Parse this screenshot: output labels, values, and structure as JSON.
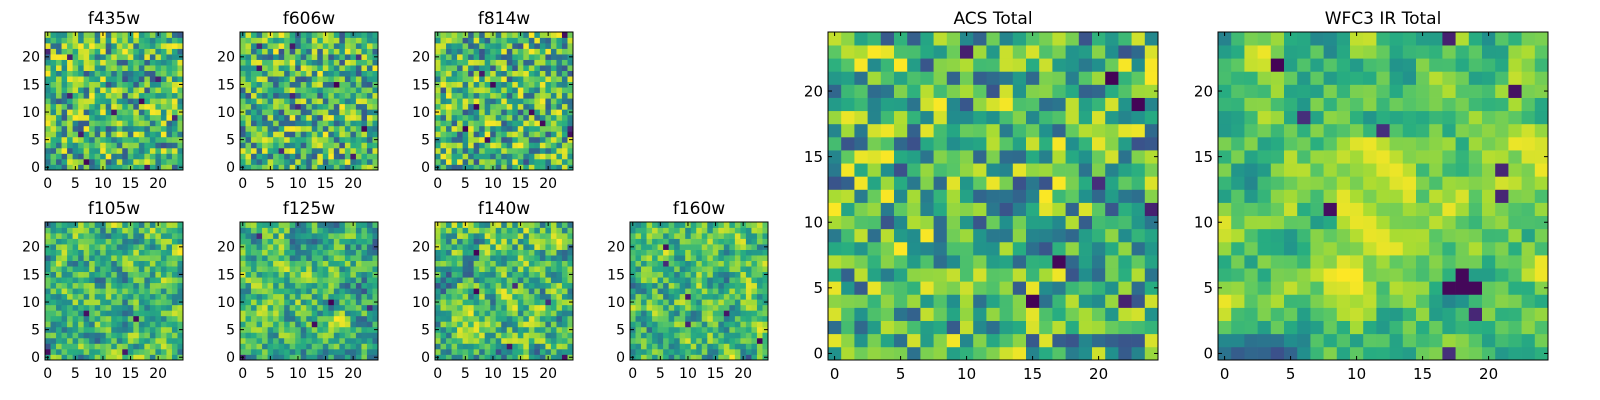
{
  "chart_data": [
    {
      "type": "heatmap",
      "title": "f435w",
      "xlim": [
        -0.5,
        24.5
      ],
      "ylim": [
        -0.5,
        24.5
      ],
      "xticks": [
        0,
        5,
        10,
        15,
        20
      ],
      "yticks": [
        0,
        5,
        10,
        15,
        20
      ],
      "grid": false,
      "colormap": "viridis",
      "data_note": "25x25 pixel cutout"
    },
    {
      "type": "heatmap",
      "title": "f606w",
      "xlim": [
        -0.5,
        24.5
      ],
      "ylim": [
        -0.5,
        24.5
      ],
      "xticks": [
        0,
        5,
        10,
        15,
        20
      ],
      "yticks": [
        0,
        5,
        10,
        15,
        20
      ],
      "grid": false,
      "colormap": "viridis",
      "data_note": "25x25 pixel cutout"
    },
    {
      "type": "heatmap",
      "title": "f814w",
      "xlim": [
        -0.5,
        24.5
      ],
      "ylim": [
        -0.5,
        24.5
      ],
      "xticks": [
        0,
        5,
        10,
        15,
        20
      ],
      "yticks": [
        0,
        5,
        10,
        15,
        20
      ],
      "grid": false,
      "colormap": "viridis",
      "data_note": "25x25 pixel cutout"
    },
    {
      "type": "heatmap",
      "title": "f105w",
      "xlim": [
        -0.5,
        24.5
      ],
      "ylim": [
        -0.5,
        24.5
      ],
      "xticks": [
        0,
        5,
        10,
        15,
        20
      ],
      "yticks": [
        0,
        5,
        10,
        15,
        20
      ],
      "grid": false,
      "colormap": "viridis",
      "data_note": "25x25 pixel cutout"
    },
    {
      "type": "heatmap",
      "title": "f125w",
      "xlim": [
        -0.5,
        24.5
      ],
      "ylim": [
        -0.5,
        24.5
      ],
      "xticks": [
        0,
        5,
        10,
        15,
        20
      ],
      "yticks": [
        0,
        5,
        10,
        15,
        20
      ],
      "grid": false,
      "colormap": "viridis",
      "data_note": "25x25 pixel cutout"
    },
    {
      "type": "heatmap",
      "title": "f140w",
      "xlim": [
        -0.5,
        24.5
      ],
      "ylim": [
        -0.5,
        24.5
      ],
      "xticks": [
        0,
        5,
        10,
        15,
        20
      ],
      "yticks": [
        0,
        5,
        10,
        15,
        20
      ],
      "grid": false,
      "colormap": "viridis",
      "data_note": "25x25 pixel cutout"
    },
    {
      "type": "heatmap",
      "title": "f160w",
      "xlim": [
        -0.5,
        24.5
      ],
      "ylim": [
        -0.5,
        24.5
      ],
      "xticks": [
        0,
        5,
        10,
        15,
        20
      ],
      "yticks": [
        0,
        5,
        10,
        15,
        20
      ],
      "grid": false,
      "colormap": "viridis",
      "data_note": "25x25 pixel cutout"
    },
    {
      "type": "heatmap",
      "title": "ACS Total",
      "xlim": [
        -0.5,
        24.5
      ],
      "ylim": [
        -0.5,
        24.5
      ],
      "xticks": [
        0,
        5,
        10,
        15,
        20
      ],
      "yticks": [
        0,
        5,
        10,
        15,
        20
      ],
      "grid": false,
      "colormap": "viridis",
      "data_note": "25x25 pixel sum of ACS bands"
    },
    {
      "type": "heatmap",
      "title": "WFC3 IR Total",
      "xlim": [
        -0.5,
        24.5
      ],
      "ylim": [
        -0.5,
        24.5
      ],
      "xticks": [
        0,
        5,
        10,
        15,
        20
      ],
      "yticks": [
        0,
        5,
        10,
        15,
        20
      ],
      "grid": false,
      "colormap": "viridis",
      "data_note": "25x25 pixel sum of WFC3 IR bands"
    }
  ]
}
